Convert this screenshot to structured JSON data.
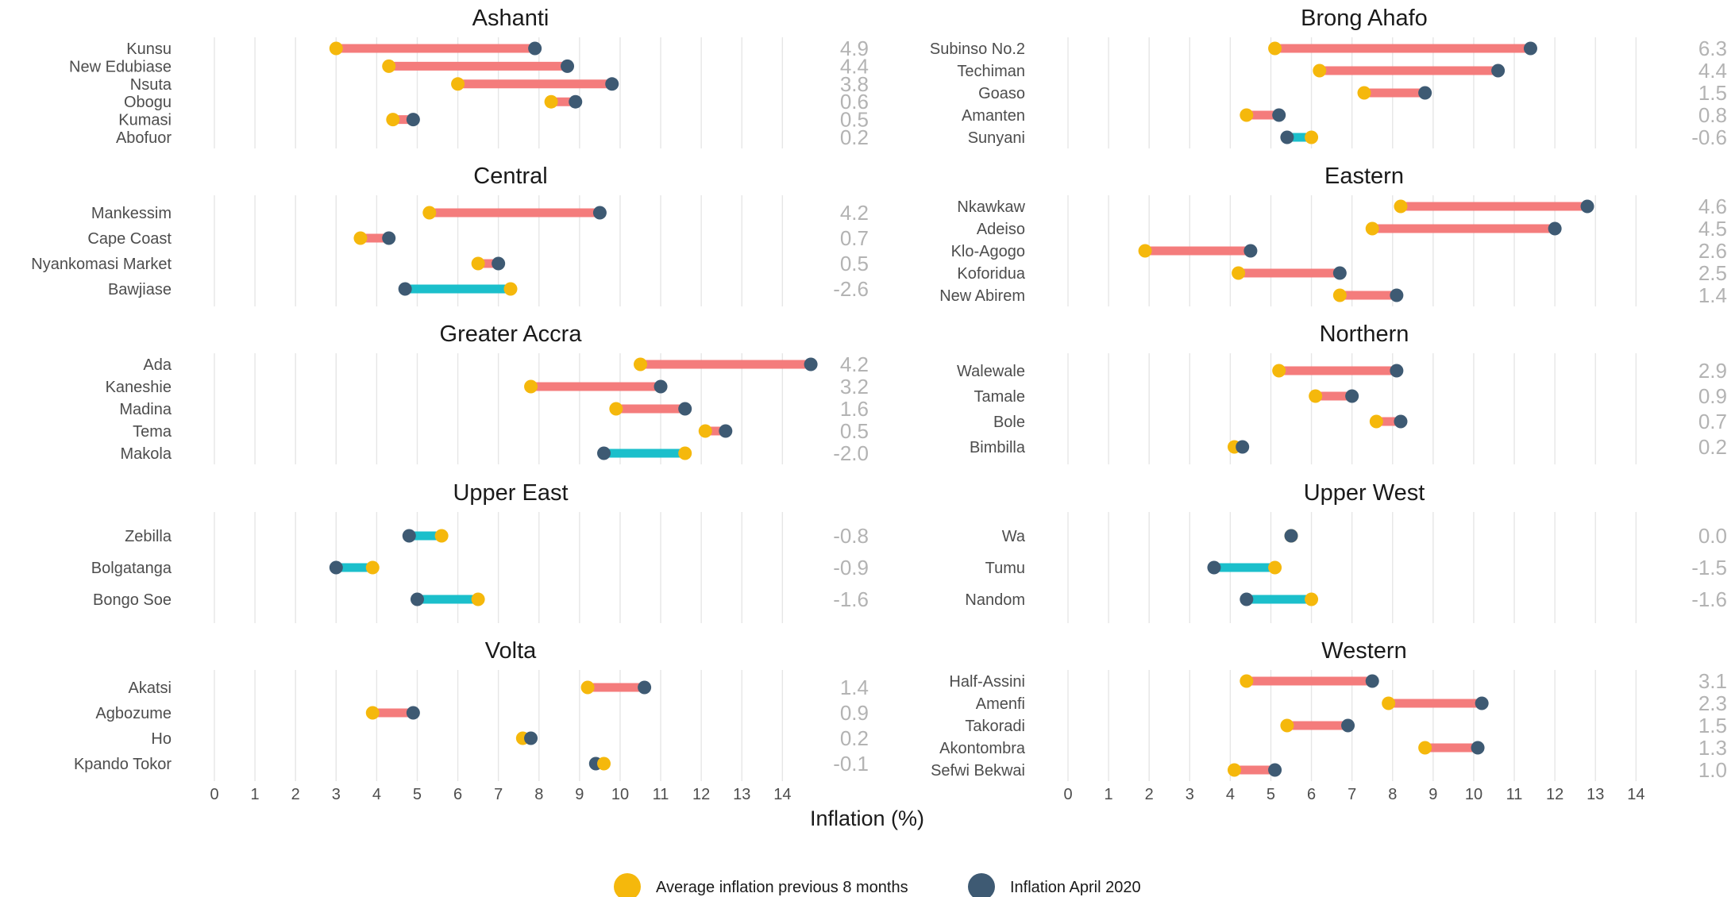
{
  "chart_data": {
    "type": "dumbbell",
    "xlabel": "Inflation (%)",
    "xlim": [
      0,
      14.6
    ],
    "xticks": [
      0,
      1,
      2,
      3,
      4,
      5,
      6,
      7,
      8,
      9,
      10,
      11,
      12,
      13,
      14
    ],
    "grid": true,
    "legend_position": "bottom",
    "legend": [
      {
        "name": "Average inflation previous 8 months",
        "color": "#F5B80C"
      },
      {
        "name": "Inflation April 2020",
        "color": "#3E5A73"
      }
    ],
    "colors": {
      "increase": "#F47C7C",
      "decrease": "#1BBFCB",
      "previous": "#F5B80C",
      "april": "#3E5A73"
    },
    "panels": [
      {
        "title": "Ashanti",
        "items": [
          {
            "label": "Kunsu",
            "prev": 3.0,
            "april": 7.9,
            "diff": "4.9"
          },
          {
            "label": "New Edubiase",
            "prev": 4.3,
            "april": 8.7,
            "diff": "4.4"
          },
          {
            "label": "Nsuta",
            "prev": 6.0,
            "april": 9.8,
            "diff": "3.8"
          },
          {
            "label": "Obogu",
            "prev": 8.3,
            "april": 8.9,
            "diff": "0.6"
          },
          {
            "label": "Kumasi",
            "prev": 4.4,
            "april": 4.9,
            "diff": "0.5"
          },
          {
            "label": "Abofuor",
            "prev": null,
            "april": null,
            "diff": "0.2"
          }
        ]
      },
      {
        "title": "Brong Ahafo",
        "items": [
          {
            "label": "Subinso No.2",
            "prev": 5.1,
            "april": 11.4,
            "diff": "6.3"
          },
          {
            "label": "Techiman",
            "prev": 6.2,
            "april": 10.6,
            "diff": "4.4"
          },
          {
            "label": "Goaso",
            "prev": 7.3,
            "april": 8.8,
            "diff": "1.5"
          },
          {
            "label": "Amanten",
            "prev": 4.4,
            "april": 5.2,
            "diff": "0.8"
          },
          {
            "label": "Sunyani",
            "prev": 6.0,
            "april": 5.4,
            "diff": "-0.6"
          }
        ]
      },
      {
        "title": "Central",
        "items": [
          {
            "label": "Mankessim",
            "prev": 5.3,
            "april": 9.5,
            "diff": "4.2"
          },
          {
            "label": "Cape Coast",
            "prev": 3.6,
            "april": 4.3,
            "diff": "0.7"
          },
          {
            "label": "Nyankomasi Market",
            "prev": 6.5,
            "april": 7.0,
            "diff": "0.5"
          },
          {
            "label": "Bawjiase",
            "prev": 7.3,
            "april": 4.7,
            "diff": "-2.6"
          }
        ]
      },
      {
        "title": "Eastern",
        "items": [
          {
            "label": "Nkawkaw",
            "prev": 8.2,
            "april": 12.8,
            "diff": "4.6"
          },
          {
            "label": "Adeiso",
            "prev": 7.5,
            "april": 12.0,
            "diff": "4.5"
          },
          {
            "label": "Klo-Agogo",
            "prev": 1.9,
            "april": 4.5,
            "diff": "2.6"
          },
          {
            "label": "Koforidua",
            "prev": 4.2,
            "april": 6.7,
            "diff": "2.5"
          },
          {
            "label": "New Abirem",
            "prev": 6.7,
            "april": 8.1,
            "diff": "1.4"
          }
        ]
      },
      {
        "title": "Greater Accra",
        "items": [
          {
            "label": "Ada",
            "prev": 10.5,
            "april": 14.7,
            "diff": "4.2"
          },
          {
            "label": "Kaneshie",
            "prev": 7.8,
            "april": 11.0,
            "diff": "3.2"
          },
          {
            "label": "Madina",
            "prev": 9.9,
            "april": 11.6,
            "diff": "1.6"
          },
          {
            "label": "Tema",
            "prev": 12.1,
            "april": 12.6,
            "diff": "0.5"
          },
          {
            "label": "Makola",
            "prev": 11.6,
            "april": 9.6,
            "diff": "-2.0"
          }
        ]
      },
      {
        "title": "Northern",
        "items": [
          {
            "label": "Walewale",
            "prev": 5.2,
            "april": 8.1,
            "diff": "2.9"
          },
          {
            "label": "Tamale",
            "prev": 6.1,
            "april": 7.0,
            "diff": "0.9"
          },
          {
            "label": "Bole",
            "prev": 7.6,
            "april": 8.2,
            "diff": "0.7"
          },
          {
            "label": "Bimbilla",
            "prev": 4.1,
            "april": 4.3,
            "diff": "0.2"
          }
        ]
      },
      {
        "title": "Upper East",
        "items": [
          {
            "label": "Zebilla",
            "prev": 5.6,
            "april": 4.8,
            "diff": "-0.8"
          },
          {
            "label": "Bolgatanga",
            "prev": 3.9,
            "april": 3.0,
            "diff": "-0.9"
          },
          {
            "label": "Bongo Soe",
            "prev": 6.5,
            "april": 5.0,
            "diff": "-1.6"
          }
        ]
      },
      {
        "title": "Upper West",
        "items": [
          {
            "label": "Wa",
            "prev": 5.5,
            "april": 5.5,
            "diff": "0.0"
          },
          {
            "label": "Tumu",
            "prev": 5.1,
            "april": 3.6,
            "diff": "-1.5"
          },
          {
            "label": "Nandom",
            "prev": 6.0,
            "april": 4.4,
            "diff": "-1.6"
          }
        ]
      },
      {
        "title": "Volta",
        "items": [
          {
            "label": "Akatsi",
            "prev": 9.2,
            "april": 10.6,
            "diff": "1.4"
          },
          {
            "label": "Agbozume",
            "prev": 3.9,
            "april": 4.9,
            "diff": "0.9"
          },
          {
            "label": "Ho",
            "prev": 7.6,
            "april": 7.8,
            "diff": "0.2"
          },
          {
            "label": "Kpando Tokor",
            "prev": 9.6,
            "april": 9.4,
            "diff": "-0.1"
          }
        ]
      },
      {
        "title": "Western",
        "items": [
          {
            "label": "Half-Assini",
            "prev": 4.4,
            "april": 7.5,
            "diff": "3.1"
          },
          {
            "label": "Amenfi",
            "prev": 7.9,
            "april": 10.2,
            "diff": "2.3"
          },
          {
            "label": "Takoradi",
            "prev": 5.4,
            "april": 6.9,
            "diff": "1.5"
          },
          {
            "label": "Akontombra",
            "prev": 8.8,
            "april": 10.1,
            "diff": "1.3"
          },
          {
            "label": "Sefwi Bekwai",
            "prev": 4.1,
            "april": 5.1,
            "diff": "1.0"
          }
        ]
      }
    ]
  }
}
